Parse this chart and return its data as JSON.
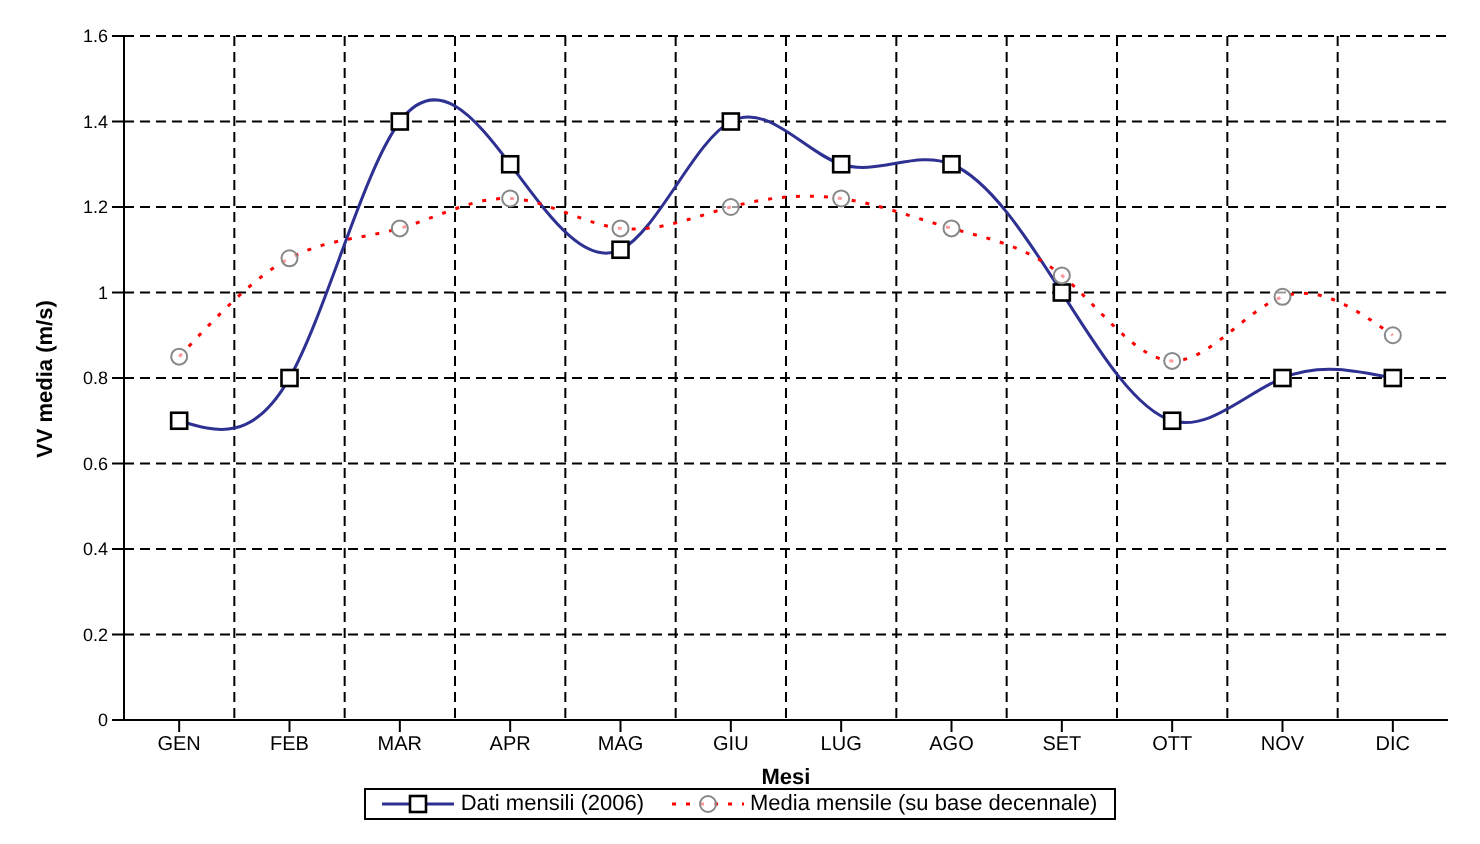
{
  "chart_data": {
    "type": "line",
    "xlabel": "Mesi",
    "ylabel": "VV media (m/s)",
    "categories": [
      "GEN",
      "FEB",
      "MAR",
      "APR",
      "MAG",
      "GIU",
      "LUG",
      "AGO",
      "SET",
      "OTT",
      "NOV",
      "DIC"
    ],
    "series": [
      {
        "name": "Dati mensili (2006)",
        "color": "#2e3192",
        "marker": "square",
        "line_style": "solid",
        "values": [
          0.7,
          0.8,
          1.4,
          1.3,
          1.1,
          1.4,
          1.3,
          1.3,
          1.0,
          0.7,
          0.8,
          0.8
        ]
      },
      {
        "name": "Media mensile (su base decennale)",
        "color": "#ff0000",
        "marker": "circle",
        "line_style": "dotted",
        "values": [
          0.85,
          1.08,
          1.15,
          1.22,
          1.15,
          1.2,
          1.22,
          1.15,
          1.04,
          0.84,
          0.99,
          0.9
        ]
      }
    ],
    "ylim": [
      0,
      1.6
    ],
    "yticks": [
      0,
      0.2,
      0.4,
      0.6,
      0.8,
      1,
      1.2,
      1.4,
      1.6
    ],
    "grid": true,
    "legend": "bottom"
  }
}
